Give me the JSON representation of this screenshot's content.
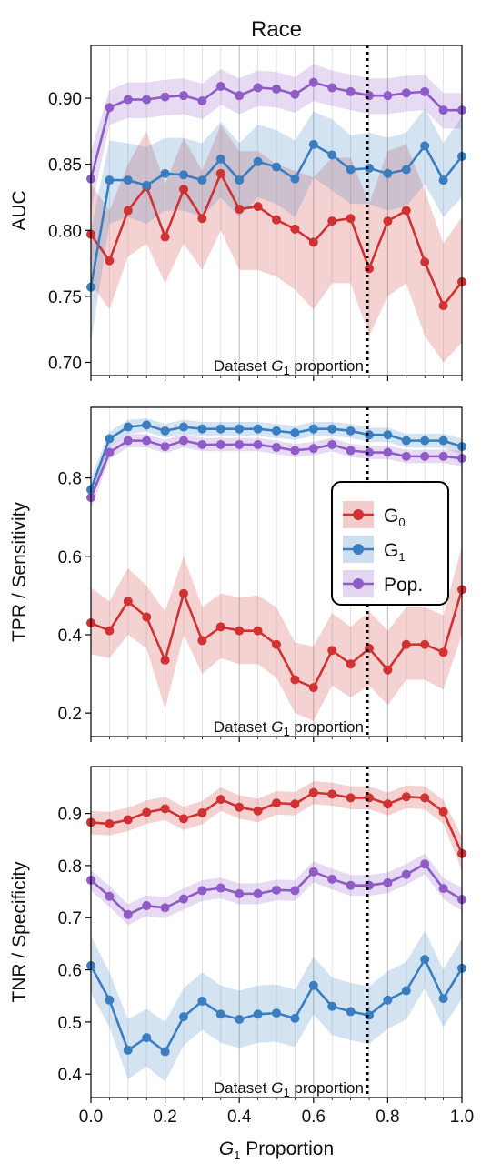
{
  "figure": {
    "title": "Race",
    "xlabel_main": "G",
    "xlabel_sub": "1",
    "xlabel_rest": " Proportion",
    "annotation_main": "Dataset ",
    "annotation_var": "G",
    "annotation_sub": "1",
    "annotation_rest": " proportion"
  },
  "legend": {
    "entries": [
      {
        "label": "G",
        "sub": "0",
        "color": "#d03234"
      },
      {
        "label": "G",
        "sub": "1",
        "color": "#3a7ebf"
      },
      {
        "label": "Pop.",
        "sub": "",
        "color": "#8f5cc7"
      }
    ]
  },
  "chart_data": [
    {
      "type": "line",
      "ylabel": "AUC",
      "xlim": [
        0,
        1
      ],
      "ylim": [
        0.69,
        0.94
      ],
      "yticks": [
        "0.70",
        "0.75",
        "0.80",
        "0.85",
        "0.90"
      ],
      "xticks": [],
      "vline": 0.745,
      "x": [
        0.0,
        0.05,
        0.1,
        0.15,
        0.2,
        0.25,
        0.3,
        0.35,
        0.4,
        0.45,
        0.5,
        0.55,
        0.6,
        0.65,
        0.7,
        0.75,
        0.8,
        0.85,
        0.9,
        0.95,
        1.0
      ],
      "series": [
        {
          "name": "G0",
          "color": "#d03234",
          "values": [
            0.797,
            0.777,
            0.815,
            0.833,
            0.795,
            0.831,
            0.809,
            0.843,
            0.816,
            0.818,
            0.808,
            0.801,
            0.791,
            0.807,
            0.809,
            0.771,
            0.807,
            0.815,
            0.776,
            0.743,
            0.761
          ],
          "lower": [
            0.76,
            0.74,
            0.78,
            0.79,
            0.76,
            0.79,
            0.77,
            0.8,
            0.77,
            0.77,
            0.765,
            0.755,
            0.74,
            0.76,
            0.76,
            0.72,
            0.75,
            0.76,
            0.72,
            0.7,
            0.715
          ],
          "upper": [
            0.835,
            0.815,
            0.85,
            0.875,
            0.835,
            0.87,
            0.845,
            0.88,
            0.86,
            0.86,
            0.85,
            0.845,
            0.84,
            0.855,
            0.855,
            0.82,
            0.86,
            0.865,
            0.83,
            0.79,
            0.81
          ]
        },
        {
          "name": "G1",
          "color": "#3a7ebf",
          "values": [
            0.757,
            0.838,
            0.838,
            0.834,
            0.843,
            0.842,
            0.838,
            0.854,
            0.838,
            0.852,
            0.848,
            0.839,
            0.865,
            0.857,
            0.846,
            0.847,
            0.843,
            0.846,
            0.864,
            0.838,
            0.856
          ],
          "lower": [
            0.715,
            0.805,
            0.81,
            0.805,
            0.815,
            0.815,
            0.81,
            0.825,
            0.81,
            0.825,
            0.82,
            0.81,
            0.84,
            0.83,
            0.82,
            0.82,
            0.815,
            0.818,
            0.835,
            0.81,
            0.825
          ],
          "upper": [
            0.8,
            0.868,
            0.866,
            0.863,
            0.87,
            0.87,
            0.866,
            0.882,
            0.866,
            0.88,
            0.876,
            0.868,
            0.89,
            0.884,
            0.872,
            0.874,
            0.87,
            0.874,
            0.892,
            0.866,
            0.886
          ]
        },
        {
          "name": "Pop.",
          "color": "#8f5cc7",
          "values": [
            0.839,
            0.893,
            0.899,
            0.899,
            0.901,
            0.902,
            0.898,
            0.909,
            0.902,
            0.908,
            0.907,
            0.903,
            0.912,
            0.908,
            0.905,
            0.902,
            0.902,
            0.904,
            0.905,
            0.891,
            0.891
          ],
          "lower": [
            0.815,
            0.88,
            0.885,
            0.885,
            0.887,
            0.888,
            0.884,
            0.895,
            0.888,
            0.894,
            0.893,
            0.889,
            0.898,
            0.894,
            0.891,
            0.888,
            0.888,
            0.89,
            0.891,
            0.877,
            0.877
          ],
          "upper": [
            0.86,
            0.906,
            0.912,
            0.912,
            0.914,
            0.915,
            0.911,
            0.922,
            0.915,
            0.921,
            0.92,
            0.916,
            0.926,
            0.921,
            0.918,
            0.915,
            0.915,
            0.917,
            0.918,
            0.904,
            0.904
          ]
        }
      ]
    },
    {
      "type": "line",
      "ylabel": "TPR / Sensitivity",
      "xlim": [
        0,
        1
      ],
      "ylim": [
        0.14,
        0.98
      ],
      "yticks": [
        "0.2",
        "0.4",
        "0.6",
        "0.8"
      ],
      "xticks": [],
      "vline": 0.745,
      "x": [
        0.0,
        0.05,
        0.1,
        0.15,
        0.2,
        0.25,
        0.3,
        0.35,
        0.4,
        0.45,
        0.5,
        0.55,
        0.6,
        0.65,
        0.7,
        0.75,
        0.8,
        0.85,
        0.9,
        0.95,
        1.0
      ],
      "series": [
        {
          "name": "G0",
          "color": "#d03234",
          "values": [
            0.43,
            0.41,
            0.485,
            0.445,
            0.335,
            0.505,
            0.385,
            0.42,
            0.41,
            0.41,
            0.375,
            0.285,
            0.265,
            0.36,
            0.325,
            0.365,
            0.31,
            0.375,
            0.375,
            0.355,
            0.515
          ],
          "lower": [
            0.35,
            0.34,
            0.4,
            0.365,
            0.21,
            0.4,
            0.3,
            0.34,
            0.325,
            0.325,
            0.29,
            0.2,
            0.18,
            0.27,
            0.24,
            0.27,
            0.22,
            0.285,
            0.285,
            0.26,
            0.4
          ],
          "upper": [
            0.52,
            0.485,
            0.57,
            0.525,
            0.46,
            0.6,
            0.47,
            0.505,
            0.495,
            0.5,
            0.47,
            0.38,
            0.37,
            0.455,
            0.42,
            0.46,
            0.41,
            0.47,
            0.47,
            0.45,
            0.625
          ]
        },
        {
          "name": "G1",
          "color": "#3a7ebf",
          "values": [
            0.77,
            0.9,
            0.93,
            0.935,
            0.92,
            0.93,
            0.925,
            0.925,
            0.925,
            0.925,
            0.92,
            0.915,
            0.925,
            0.925,
            0.92,
            0.91,
            0.91,
            0.895,
            0.895,
            0.895,
            0.88
          ],
          "lower": [
            0.74,
            0.88,
            0.912,
            0.918,
            0.902,
            0.912,
            0.907,
            0.907,
            0.907,
            0.907,
            0.902,
            0.897,
            0.907,
            0.907,
            0.902,
            0.892,
            0.892,
            0.877,
            0.877,
            0.877,
            0.86
          ],
          "upper": [
            0.8,
            0.918,
            0.948,
            0.952,
            0.938,
            0.948,
            0.943,
            0.943,
            0.943,
            0.943,
            0.938,
            0.933,
            0.943,
            0.943,
            0.938,
            0.928,
            0.928,
            0.913,
            0.913,
            0.913,
            0.9
          ]
        },
        {
          "name": "Pop.",
          "color": "#8f5cc7",
          "values": [
            0.75,
            0.865,
            0.895,
            0.895,
            0.88,
            0.895,
            0.885,
            0.885,
            0.885,
            0.885,
            0.878,
            0.87,
            0.875,
            0.885,
            0.87,
            0.865,
            0.865,
            0.855,
            0.855,
            0.855,
            0.85
          ],
          "lower": [
            0.72,
            0.848,
            0.878,
            0.878,
            0.863,
            0.878,
            0.868,
            0.868,
            0.868,
            0.868,
            0.861,
            0.853,
            0.858,
            0.868,
            0.853,
            0.848,
            0.848,
            0.838,
            0.838,
            0.838,
            0.83
          ],
          "upper": [
            0.78,
            0.882,
            0.912,
            0.912,
            0.897,
            0.912,
            0.902,
            0.902,
            0.902,
            0.902,
            0.895,
            0.887,
            0.892,
            0.902,
            0.887,
            0.882,
            0.882,
            0.872,
            0.872,
            0.872,
            0.87
          ]
        }
      ]
    },
    {
      "type": "line",
      "ylabel": "TNR / Specificity",
      "xlabel": "G1 Proportion",
      "xlim": [
        0,
        1
      ],
      "ylim": [
        0.355,
        0.99
      ],
      "yticks": [
        "0.4",
        "0.5",
        "0.6",
        "0.7",
        "0.8",
        "0.9"
      ],
      "xticks": [
        "0.0",
        "0.2",
        "0.4",
        "0.6",
        "0.8",
        "1.0"
      ],
      "vline": 0.745,
      "x": [
        0.0,
        0.05,
        0.1,
        0.15,
        0.2,
        0.25,
        0.3,
        0.35,
        0.4,
        0.45,
        0.5,
        0.55,
        0.6,
        0.65,
        0.7,
        0.75,
        0.8,
        0.85,
        0.9,
        0.95,
        1.0
      ],
      "series": [
        {
          "name": "G0",
          "color": "#d03234",
          "values": [
            0.883,
            0.88,
            0.888,
            0.902,
            0.909,
            0.89,
            0.901,
            0.927,
            0.912,
            0.905,
            0.92,
            0.918,
            0.94,
            0.937,
            0.93,
            0.93,
            0.918,
            0.932,
            0.93,
            0.903,
            0.823
          ],
          "lower": [
            0.86,
            0.858,
            0.866,
            0.88,
            0.887,
            0.868,
            0.879,
            0.905,
            0.89,
            0.883,
            0.898,
            0.896,
            0.918,
            0.915,
            0.908,
            0.908,
            0.896,
            0.91,
            0.908,
            0.88,
            0.79
          ],
          "upper": [
            0.905,
            0.903,
            0.911,
            0.925,
            0.932,
            0.913,
            0.924,
            0.95,
            0.935,
            0.928,
            0.943,
            0.941,
            0.962,
            0.959,
            0.952,
            0.952,
            0.94,
            0.954,
            0.952,
            0.926,
            0.855
          ]
        },
        {
          "name": "G1",
          "color": "#3a7ebf",
          "values": [
            0.608,
            0.542,
            0.446,
            0.47,
            0.443,
            0.51,
            0.54,
            0.515,
            0.505,
            0.515,
            0.517,
            0.507,
            0.57,
            0.53,
            0.52,
            0.513,
            0.542,
            0.56,
            0.62,
            0.545,
            0.603
          ],
          "lower": [
            0.555,
            0.49,
            0.39,
            0.415,
            0.385,
            0.455,
            0.485,
            0.46,
            0.45,
            0.46,
            0.462,
            0.452,
            0.515,
            0.475,
            0.465,
            0.458,
            0.487,
            0.505,
            0.565,
            0.49,
            0.545
          ],
          "upper": [
            0.665,
            0.595,
            0.505,
            0.525,
            0.5,
            0.565,
            0.595,
            0.57,
            0.56,
            0.57,
            0.572,
            0.562,
            0.625,
            0.585,
            0.575,
            0.568,
            0.597,
            0.615,
            0.675,
            0.6,
            0.66
          ]
        },
        {
          "name": "Pop.",
          "color": "#8f5cc7",
          "values": [
            0.772,
            0.741,
            0.706,
            0.723,
            0.719,
            0.736,
            0.752,
            0.757,
            0.746,
            0.746,
            0.753,
            0.752,
            0.788,
            0.774,
            0.762,
            0.762,
            0.767,
            0.783,
            0.803,
            0.756,
            0.735
          ],
          "lower": [
            0.752,
            0.721,
            0.686,
            0.703,
            0.699,
            0.716,
            0.732,
            0.737,
            0.726,
            0.726,
            0.733,
            0.732,
            0.768,
            0.754,
            0.742,
            0.742,
            0.747,
            0.763,
            0.783,
            0.736,
            0.713
          ],
          "upper": [
            0.792,
            0.761,
            0.726,
            0.743,
            0.739,
            0.756,
            0.772,
            0.777,
            0.766,
            0.766,
            0.773,
            0.772,
            0.808,
            0.794,
            0.782,
            0.782,
            0.787,
            0.803,
            0.823,
            0.776,
            0.757
          ]
        }
      ]
    }
  ]
}
